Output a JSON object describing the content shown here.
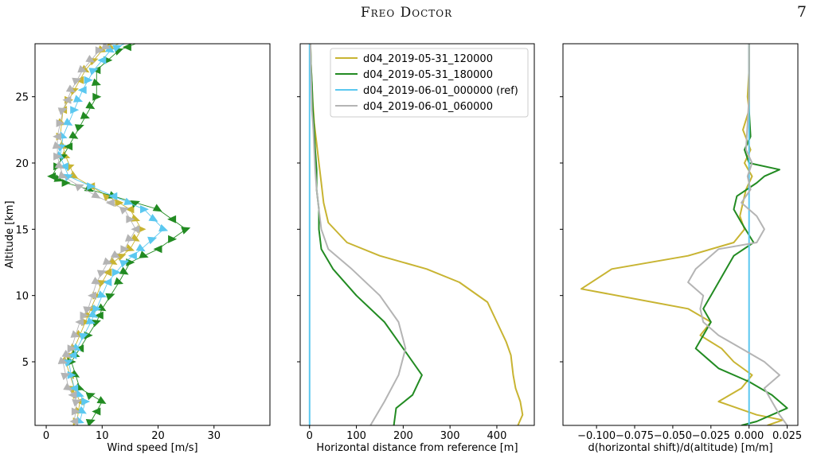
{
  "header": {
    "title": "Freo Doctor",
    "page_number": "7"
  },
  "chart_data": [
    {
      "type": "line",
      "panel": "wind-speed",
      "xlabel": "Wind speed [m/s]",
      "ylabel": "Altitude [km]",
      "xlim": [
        -2,
        40
      ],
      "ylim": [
        0.2,
        29
      ],
      "xticks": [
        0,
        10,
        20,
        30
      ],
      "yticks": [
        5,
        10,
        15,
        20,
        25
      ],
      "marker": "wind-direction arrowheads",
      "series": [
        {
          "color": "#C8B432",
          "points": [
            [
              5.5,
              0.5
            ],
            [
              6,
              2
            ],
            [
              5,
              3
            ],
            [
              3.5,
              5
            ],
            [
              5,
              6
            ],
            [
              7,
              8
            ],
            [
              8,
              9
            ],
            [
              10,
              11
            ],
            [
              12,
              12.5
            ],
            [
              15,
              13.5
            ],
            [
              17,
              15
            ],
            [
              15,
              16.5
            ],
            [
              11,
              17.5
            ],
            [
              5,
              19
            ],
            [
              3.5,
              20.5
            ],
            [
              2.5,
              22
            ],
            [
              3,
              24
            ],
            [
              5,
              25.5
            ],
            [
              7,
              27
            ],
            [
              10,
              28.5
            ],
            [
              13,
              29
            ]
          ]
        },
        {
          "color": "#228B22",
          "points": [
            [
              8,
              0.5
            ],
            [
              10,
              2
            ],
            [
              6,
              3
            ],
            [
              4.5,
              5
            ],
            [
              6,
              6
            ],
            [
              9,
              8
            ],
            [
              10,
              9
            ],
            [
              13,
              11
            ],
            [
              15,
              12.5
            ],
            [
              20,
              13.5
            ],
            [
              25,
              15
            ],
            [
              20,
              16.5
            ],
            [
              12,
              17.5
            ],
            [
              3.5,
              18.5
            ],
            [
              1,
              19
            ],
            [
              3,
              20.5
            ],
            [
              5,
              22
            ],
            [
              7,
              23.5
            ],
            [
              9,
              25
            ],
            [
              9,
              27
            ],
            [
              13,
              28.5
            ],
            [
              16,
              29
            ]
          ]
        },
        {
          "color": "#5BC8F0",
          "points": [
            [
              6,
              0.5
            ],
            [
              7,
              2
            ],
            [
              5,
              3
            ],
            [
              4,
              5
            ],
            [
              5.5,
              6
            ],
            [
              8,
              8
            ],
            [
              9,
              9
            ],
            [
              11,
              11
            ],
            [
              14,
              12.5
            ],
            [
              17,
              13.5
            ],
            [
              21,
              15
            ],
            [
              17.5,
              16.5
            ],
            [
              12,
              17.5
            ],
            [
              4,
              19
            ],
            [
              2.5,
              20.5
            ],
            [
              3,
              22
            ],
            [
              5,
              24
            ],
            [
              6.5,
              25.5
            ],
            [
              8.5,
              27
            ],
            [
              11.5,
              28.5
            ],
            [
              14,
              29
            ]
          ]
        },
        {
          "color": "#B4B4B4",
          "points": [
            [
              5,
              0.5
            ],
            [
              5.5,
              2
            ],
            [
              4,
              3
            ],
            [
              3,
              5
            ],
            [
              4.5,
              6
            ],
            [
              6,
              8
            ],
            [
              7.5,
              9
            ],
            [
              9,
              11
            ],
            [
              11,
              12.5
            ],
            [
              14,
              13.5
            ],
            [
              16,
              15
            ],
            [
              14,
              16.5
            ],
            [
              9,
              17.5
            ],
            [
              3,
              19
            ],
            [
              2,
              20.5
            ],
            [
              2,
              22
            ],
            [
              3,
              24
            ],
            [
              4.5,
              25.5
            ],
            [
              6.5,
              27
            ],
            [
              9.5,
              28.5
            ],
            [
              12,
              29
            ]
          ]
        }
      ]
    },
    {
      "type": "line",
      "panel": "horizontal-distance",
      "xlabel": "Horizontal distance from reference [m]",
      "ylabel": "",
      "xlim": [
        -20,
        480
      ],
      "ylim": [
        0.2,
        29
      ],
      "xticks": [
        0,
        100,
        200,
        300,
        400
      ],
      "yticks": [
        5,
        10,
        15,
        20,
        25
      ],
      "legend": "top-right",
      "series": [
        {
          "name": "d04_2019-05-31_120000",
          "color": "#C8B432",
          "points": [
            [
              445,
              0.2
            ],
            [
              455,
              1
            ],
            [
              450,
              2
            ],
            [
              440,
              3
            ],
            [
              435,
              4
            ],
            [
              430,
              5.5
            ],
            [
              420,
              6.5
            ],
            [
              400,
              8
            ],
            [
              380,
              9.5
            ],
            [
              320,
              11
            ],
            [
              250,
              12
            ],
            [
              150,
              13
            ],
            [
              80,
              14
            ],
            [
              40,
              15.5
            ],
            [
              30,
              17
            ],
            [
              25,
              18.5
            ],
            [
              20,
              20
            ],
            [
              15,
              21.5
            ],
            [
              10,
              23
            ],
            [
              7,
              24.5
            ],
            [
              5,
              26
            ],
            [
              3,
              27.5
            ],
            [
              2,
              29
            ]
          ]
        },
        {
          "name": "d04_2019-05-31_180000",
          "color": "#228B22",
          "points": [
            [
              180,
              0.2
            ],
            [
              185,
              1.5
            ],
            [
              220,
              2.5
            ],
            [
              240,
              4
            ],
            [
              200,
              6
            ],
            [
              160,
              8
            ],
            [
              100,
              10
            ],
            [
              50,
              12
            ],
            [
              25,
              13.5
            ],
            [
              20,
              15
            ],
            [
              20,
              16.5
            ],
            [
              15,
              18
            ],
            [
              15,
              19.5
            ],
            [
              12,
              21
            ],
            [
              10,
              22.5
            ],
            [
              7,
              24
            ],
            [
              5,
              26
            ],
            [
              3,
              27.5
            ],
            [
              2,
              29
            ]
          ]
        },
        {
          "name": "d04_2019-06-01_000000 (ref)",
          "color": "#5BC8F0",
          "points": [
            [
              0,
              0.2
            ],
            [
              0,
              29
            ]
          ]
        },
        {
          "name": "d04_2019-06-01_060000",
          "color": "#B4B4B4",
          "points": [
            [
              130,
              0.2
            ],
            [
              160,
              2
            ],
            [
              190,
              4
            ],
            [
              205,
              6
            ],
            [
              190,
              8
            ],
            [
              150,
              10
            ],
            [
              90,
              12
            ],
            [
              40,
              13.5
            ],
            [
              25,
              15
            ],
            [
              20,
              16.5
            ],
            [
              15,
              18
            ],
            [
              12,
              19.5
            ],
            [
              10,
              21
            ],
            [
              8,
              22.5
            ],
            [
              5,
              24
            ],
            [
              4,
              25.5
            ],
            [
              3,
              27
            ],
            [
              2,
              29
            ]
          ]
        }
      ]
    },
    {
      "type": "line",
      "panel": "shift-derivative",
      "xlabel": "d(horizontal shift)/d(altitude) [m/m]",
      "ylabel": "",
      "xlim": [
        -0.122,
        0.032
      ],
      "ylim": [
        0.2,
        29
      ],
      "xticks": [
        -0.1,
        -0.075,
        -0.05,
        -0.025,
        0.0,
        0.025
      ],
      "xticklabels": [
        "−0.100",
        "−0.075",
        "−0.050",
        "−0.025",
        "0.000",
        "0.025"
      ],
      "yticks": [
        5,
        10,
        15,
        20,
        25
      ],
      "series": [
        {
          "color": "#C8B432",
          "points": [
            [
              0.012,
              0.2
            ],
            [
              0.022,
              0.6
            ],
            [
              0.005,
              1
            ],
            [
              -0.02,
              2
            ],
            [
              -0.005,
              3
            ],
            [
              0.002,
              4
            ],
            [
              -0.01,
              5
            ],
            [
              -0.018,
              6
            ],
            [
              -0.032,
              7
            ],
            [
              -0.025,
              8
            ],
            [
              -0.04,
              9
            ],
            [
              -0.11,
              10.5
            ],
            [
              -0.09,
              12
            ],
            [
              -0.04,
              13
            ],
            [
              -0.01,
              14
            ],
            [
              -0.003,
              15
            ],
            [
              -0.006,
              16
            ],
            [
              -0.004,
              17
            ],
            [
              -0.002,
              18
            ],
            [
              0.002,
              19
            ],
            [
              -0.003,
              20
            ],
            [
              0.001,
              21
            ],
            [
              -0.004,
              22.5
            ],
            [
              0.0,
              24
            ],
            [
              -0.001,
              25
            ],
            [
              0.0,
              27
            ],
            [
              0.0,
              29
            ]
          ]
        },
        {
          "color": "#228B22",
          "points": [
            [
              -0.005,
              0.2
            ],
            [
              0.005,
              0.5
            ],
            [
              0.015,
              1
            ],
            [
              0.025,
              1.5
            ],
            [
              0.015,
              2.5
            ],
            [
              0.0,
              3.5
            ],
            [
              -0.02,
              4.5
            ],
            [
              -0.035,
              6
            ],
            [
              -0.025,
              8
            ],
            [
              -0.03,
              9
            ],
            [
              -0.025,
              10
            ],
            [
              -0.015,
              12
            ],
            [
              -0.01,
              13
            ],
            [
              0.003,
              14
            ],
            [
              -0.005,
              15.5
            ],
            [
              -0.01,
              16.5
            ],
            [
              -0.008,
              17.5
            ],
            [
              0.005,
              18.5
            ],
            [
              0.01,
              19
            ],
            [
              0.02,
              19.5
            ],
            [
              0.0,
              20
            ],
            [
              -0.003,
              21
            ],
            [
              0.001,
              22
            ],
            [
              0.0,
              24
            ],
            [
              0.0,
              26
            ],
            [
              0.0,
              29
            ]
          ]
        },
        {
          "color": "#5BC8F0",
          "points": [
            [
              0,
              0.2
            ],
            [
              0,
              29
            ]
          ]
        },
        {
          "color": "#B4B4B4",
          "points": [
            [
              0.025,
              0.2
            ],
            [
              0.02,
              1
            ],
            [
              0.015,
              2
            ],
            [
              0.01,
              3
            ],
            [
              0.02,
              4
            ],
            [
              0.01,
              5
            ],
            [
              -0.005,
              6
            ],
            [
              -0.02,
              7
            ],
            [
              -0.03,
              8
            ],
            [
              -0.032,
              9
            ],
            [
              -0.03,
              10
            ],
            [
              -0.04,
              11
            ],
            [
              -0.035,
              12
            ],
            [
              -0.02,
              13.5
            ],
            [
              0.005,
              14
            ],
            [
              0.01,
              15
            ],
            [
              0.005,
              16
            ],
            [
              -0.005,
              17
            ],
            [
              0.001,
              18
            ],
            [
              -0.001,
              19
            ],
            [
              0.002,
              20
            ],
            [
              -0.002,
              21
            ],
            [
              -0.001,
              23
            ],
            [
              0.0,
              25
            ],
            [
              0.0,
              27
            ],
            [
              0.0,
              29
            ]
          ]
        }
      ]
    }
  ]
}
